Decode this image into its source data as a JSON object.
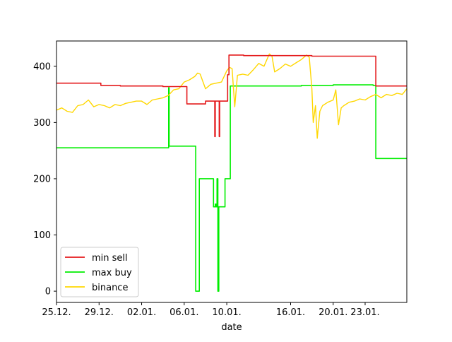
{
  "colors": {
    "min_sell": "#e41a1c",
    "max_buy": "#00ee00",
    "binance": "#ffd700",
    "frame": "#000000"
  },
  "chart_data": {
    "type": "line",
    "title": "",
    "xlabel": "date",
    "ylabel": "",
    "x_unit": "date (day.month.)",
    "xlim": [
      "2022-12-25",
      "2023-01-26T22:00"
    ],
    "ylim": [
      -20,
      445
    ],
    "grid": false,
    "legend_position": "lower left",
    "x_ticks": [
      {
        "label": "25.12.",
        "date": "2022-12-25"
      },
      {
        "label": "29.12.",
        "date": "2022-12-29"
      },
      {
        "label": "02.01.",
        "date": "2023-01-02"
      },
      {
        "label": "06.01.",
        "date": "2023-01-06"
      },
      {
        "label": "10.01.",
        "date": "2023-01-10"
      },
      {
        "label": "16.01.",
        "date": "2023-01-16"
      },
      {
        "label": "20.01.",
        "date": "2023-01-20"
      },
      {
        "label": "23.01.",
        "date": "2023-01-23"
      }
    ],
    "y_ticks": [
      0,
      100,
      200,
      300,
      400
    ],
    "series": [
      {
        "name": "min sell",
        "color": "#e41a1c",
        "step": true,
        "points": [
          [
            "2022-12-25T00:00",
            370
          ],
          [
            "2022-12-29T00:00",
            370
          ],
          [
            "2022-12-29T04:00",
            366
          ],
          [
            "2022-12-31T00:00",
            365
          ],
          [
            "2023-01-04T00:00",
            364
          ],
          [
            "2023-01-04T12:00",
            364
          ],
          [
            "2023-01-06T06:00",
            333
          ],
          [
            "2023-01-07T12:00",
            333
          ],
          [
            "2023-01-08T00:00",
            338
          ],
          [
            "2023-01-08T20:00",
            338
          ],
          [
            "2023-01-08T21:00",
            275
          ],
          [
            "2023-01-08T22:00",
            338
          ],
          [
            "2023-01-09T06:00",
            338
          ],
          [
            "2023-01-09T07:00",
            275
          ],
          [
            "2023-01-09T08:00",
            338
          ],
          [
            "2023-01-09T22:00",
            338
          ],
          [
            "2023-01-10T02:00",
            385
          ],
          [
            "2023-01-10T05:00",
            420
          ],
          [
            "2023-01-11T12:00",
            420
          ],
          [
            "2023-01-11T14:00",
            419
          ],
          [
            "2023-01-16T00:00",
            419
          ],
          [
            "2023-01-18T00:00",
            418
          ],
          [
            "2023-01-23T18:00",
            418
          ],
          [
            "2023-01-24T00:00",
            365
          ],
          [
            "2023-01-26T22:00",
            365
          ]
        ]
      },
      {
        "name": "max buy",
        "color": "#00ee00",
        "step": true,
        "points": [
          [
            "2022-12-25T00:00",
            255
          ],
          [
            "2023-01-04T12:00",
            255
          ],
          [
            "2023-01-04T13:00",
            362
          ],
          [
            "2023-01-04T14:00",
            258
          ],
          [
            "2023-01-07T00:00",
            258
          ],
          [
            "2023-01-07T02:00",
            0
          ],
          [
            "2023-01-07T08:00",
            0
          ],
          [
            "2023-01-07T10:00",
            200
          ],
          [
            "2023-01-08T16:00",
            200
          ],
          [
            "2023-01-08T18:00",
            150
          ],
          [
            "2023-01-08T22:00",
            155
          ],
          [
            "2023-01-09T00:00",
            150
          ],
          [
            "2023-01-09T02:00",
            200
          ],
          [
            "2023-01-09T04:00",
            0
          ],
          [
            "2023-01-09T06:00",
            150
          ],
          [
            "2023-01-09T18:00",
            150
          ],
          [
            "2023-01-09T20:00",
            200
          ],
          [
            "2023-01-10T06:00",
            200
          ],
          [
            "2023-01-10T08:00",
            365
          ],
          [
            "2023-01-17T00:00",
            366
          ],
          [
            "2023-01-20T00:00",
            367
          ],
          [
            "2023-01-23T18:00",
            366
          ],
          [
            "2023-01-24T00:00",
            236
          ],
          [
            "2023-01-26T22:00",
            236
          ]
        ]
      },
      {
        "name": "binance",
        "color": "#ffd700",
        "step": false,
        "points": [
          [
            "2022-12-25T00:00",
            322
          ],
          [
            "2022-12-25T12:00",
            326
          ],
          [
            "2022-12-26T00:00",
            320
          ],
          [
            "2022-12-26T12:00",
            318
          ],
          [
            "2022-12-27T00:00",
            330
          ],
          [
            "2022-12-27T12:00",
            332
          ],
          [
            "2022-12-28T00:00",
            340
          ],
          [
            "2022-12-28T12:00",
            328
          ],
          [
            "2022-12-29T00:00",
            332
          ],
          [
            "2022-12-29T12:00",
            330
          ],
          [
            "2022-12-30T00:00",
            326
          ],
          [
            "2022-12-30T12:00",
            332
          ],
          [
            "2022-12-31T00:00",
            330
          ],
          [
            "2022-12-31T12:00",
            334
          ],
          [
            "2023-01-01T00:00",
            336
          ],
          [
            "2023-01-01T12:00",
            338
          ],
          [
            "2023-01-02T00:00",
            338
          ],
          [
            "2023-01-02T12:00",
            332
          ],
          [
            "2023-01-03T00:00",
            340
          ],
          [
            "2023-01-03T12:00",
            342
          ],
          [
            "2023-01-04T00:00",
            344
          ],
          [
            "2023-01-04T12:00",
            348
          ],
          [
            "2023-01-05T00:00",
            358
          ],
          [
            "2023-01-05T12:00",
            360
          ],
          [
            "2023-01-06T00:00",
            372
          ],
          [
            "2023-01-06T12:00",
            376
          ],
          [
            "2023-01-07T00:00",
            382
          ],
          [
            "2023-01-07T06:00",
            388
          ],
          [
            "2023-01-07T12:00",
            386
          ],
          [
            "2023-01-08T00:00",
            360
          ],
          [
            "2023-01-08T12:00",
            368
          ],
          [
            "2023-01-09T00:00",
            370
          ],
          [
            "2023-01-09T12:00",
            372
          ],
          [
            "2023-01-10T00:00",
            392
          ],
          [
            "2023-01-10T06:00",
            398
          ],
          [
            "2023-01-10T12:00",
            396
          ],
          [
            "2023-01-10T18:00",
            328
          ],
          [
            "2023-01-11T00:00",
            384
          ],
          [
            "2023-01-11T12:00",
            386
          ],
          [
            "2023-01-12T00:00",
            384
          ],
          [
            "2023-01-12T12:00",
            394
          ],
          [
            "2023-01-13T00:00",
            405
          ],
          [
            "2023-01-13T12:00",
            400
          ],
          [
            "2023-01-14T00:00",
            422
          ],
          [
            "2023-01-14T06:00",
            418
          ],
          [
            "2023-01-14T12:00",
            390
          ],
          [
            "2023-01-15T00:00",
            396
          ],
          [
            "2023-01-15T12:00",
            404
          ],
          [
            "2023-01-16T00:00",
            400
          ],
          [
            "2023-01-16T12:00",
            406
          ],
          [
            "2023-01-17T00:00",
            412
          ],
          [
            "2023-01-17T12:00",
            420
          ],
          [
            "2023-01-17T18:00",
            416
          ],
          [
            "2023-01-18T00:00",
            360
          ],
          [
            "2023-01-18T03:00",
            300
          ],
          [
            "2023-01-18T08:00",
            330
          ],
          [
            "2023-01-18T12:00",
            272
          ],
          [
            "2023-01-18T18:00",
            320
          ],
          [
            "2023-01-19T00:00",
            330
          ],
          [
            "2023-01-19T12:00",
            336
          ],
          [
            "2023-01-20T00:00",
            340
          ],
          [
            "2023-01-20T06:00",
            358
          ],
          [
            "2023-01-20T12:00",
            296
          ],
          [
            "2023-01-20T18:00",
            326
          ],
          [
            "2023-01-21T00:00",
            330
          ],
          [
            "2023-01-21T12:00",
            336
          ],
          [
            "2023-01-22T00:00",
            338
          ],
          [
            "2023-01-22T12:00",
            342
          ],
          [
            "2023-01-23T00:00",
            340
          ],
          [
            "2023-01-23T12:00",
            346
          ],
          [
            "2023-01-24T00:00",
            350
          ],
          [
            "2023-01-24T12:00",
            344
          ],
          [
            "2023-01-25T00:00",
            350
          ],
          [
            "2023-01-25T12:00",
            348
          ],
          [
            "2023-01-26T00:00",
            352
          ],
          [
            "2023-01-26T12:00",
            350
          ],
          [
            "2023-01-26T22:00",
            360
          ]
        ]
      }
    ]
  }
}
